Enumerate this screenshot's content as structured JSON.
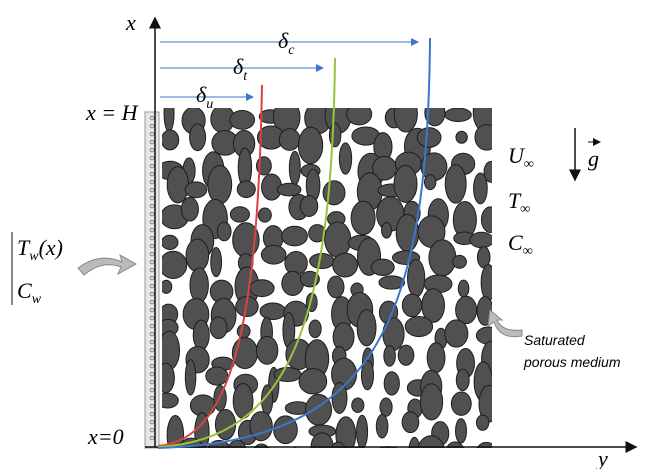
{
  "labels": {
    "x_axis": "x",
    "y_axis": "y",
    "top": "x = H",
    "bottom": "x=0",
    "delta_c": {
      "symbol": "δ",
      "subscript": "c"
    },
    "delta_t": {
      "symbol": "δ",
      "subscript": "t"
    },
    "delta_u": {
      "symbol": "δ",
      "subscript": "u"
    },
    "u_inf": {
      "symbol": "U",
      "subscript": "∞"
    },
    "t_inf": {
      "symbol": "T",
      "subscript": "∞"
    },
    "c_inf": {
      "symbol": "C",
      "subscript": "∞"
    },
    "gravity": "g",
    "wall_temp": {
      "symbol": "T",
      "subscript": "w",
      "suffix": "(x)"
    },
    "wall_conc": {
      "symbol": "C",
      "subscript": "w"
    },
    "medium": [
      "Saturated",
      "porous medium"
    ]
  }
}
